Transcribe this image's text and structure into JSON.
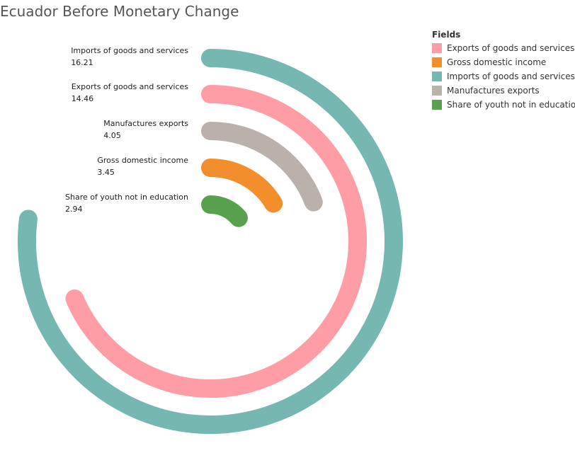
{
  "chart_data": {
    "type": "radial_bar",
    "title": "Ecuador Before Monetary Change",
    "legend": {
      "title": "Fields",
      "placement": "top-right",
      "items": [
        {
          "label": "Exports of goods and services",
          "color": "#FF9DA7"
        },
        {
          "label": "Gross domestic income",
          "color": "#F28E2B"
        },
        {
          "label": "Imports of goods and services",
          "color": "#76B7B2"
        },
        {
          "label": "Manufactures exports",
          "color": "#BAB0AC"
        },
        {
          "label": "Share of youth not in education",
          "color": "#59A14F"
        }
      ]
    },
    "series": [
      {
        "name": "Imports of goods and services",
        "value": 16.21,
        "value_label": "16.21",
        "color": "#76B7B2"
      },
      {
        "name": "Exports of goods and services",
        "value": 14.46,
        "value_label": "14.46",
        "color": "#FF9DA7"
      },
      {
        "name": "Manufactures exports",
        "value": 4.05,
        "value_label": "4.05",
        "color": "#BAB0AC"
      },
      {
        "name": "Gross domestic income",
        "value": 3.45,
        "value_label": "3.45",
        "color": "#F28E2B"
      },
      {
        "name": "Share of youth not in education",
        "value": 2.94,
        "value_label": "2.94",
        "color": "#59A14F"
      }
    ]
  }
}
